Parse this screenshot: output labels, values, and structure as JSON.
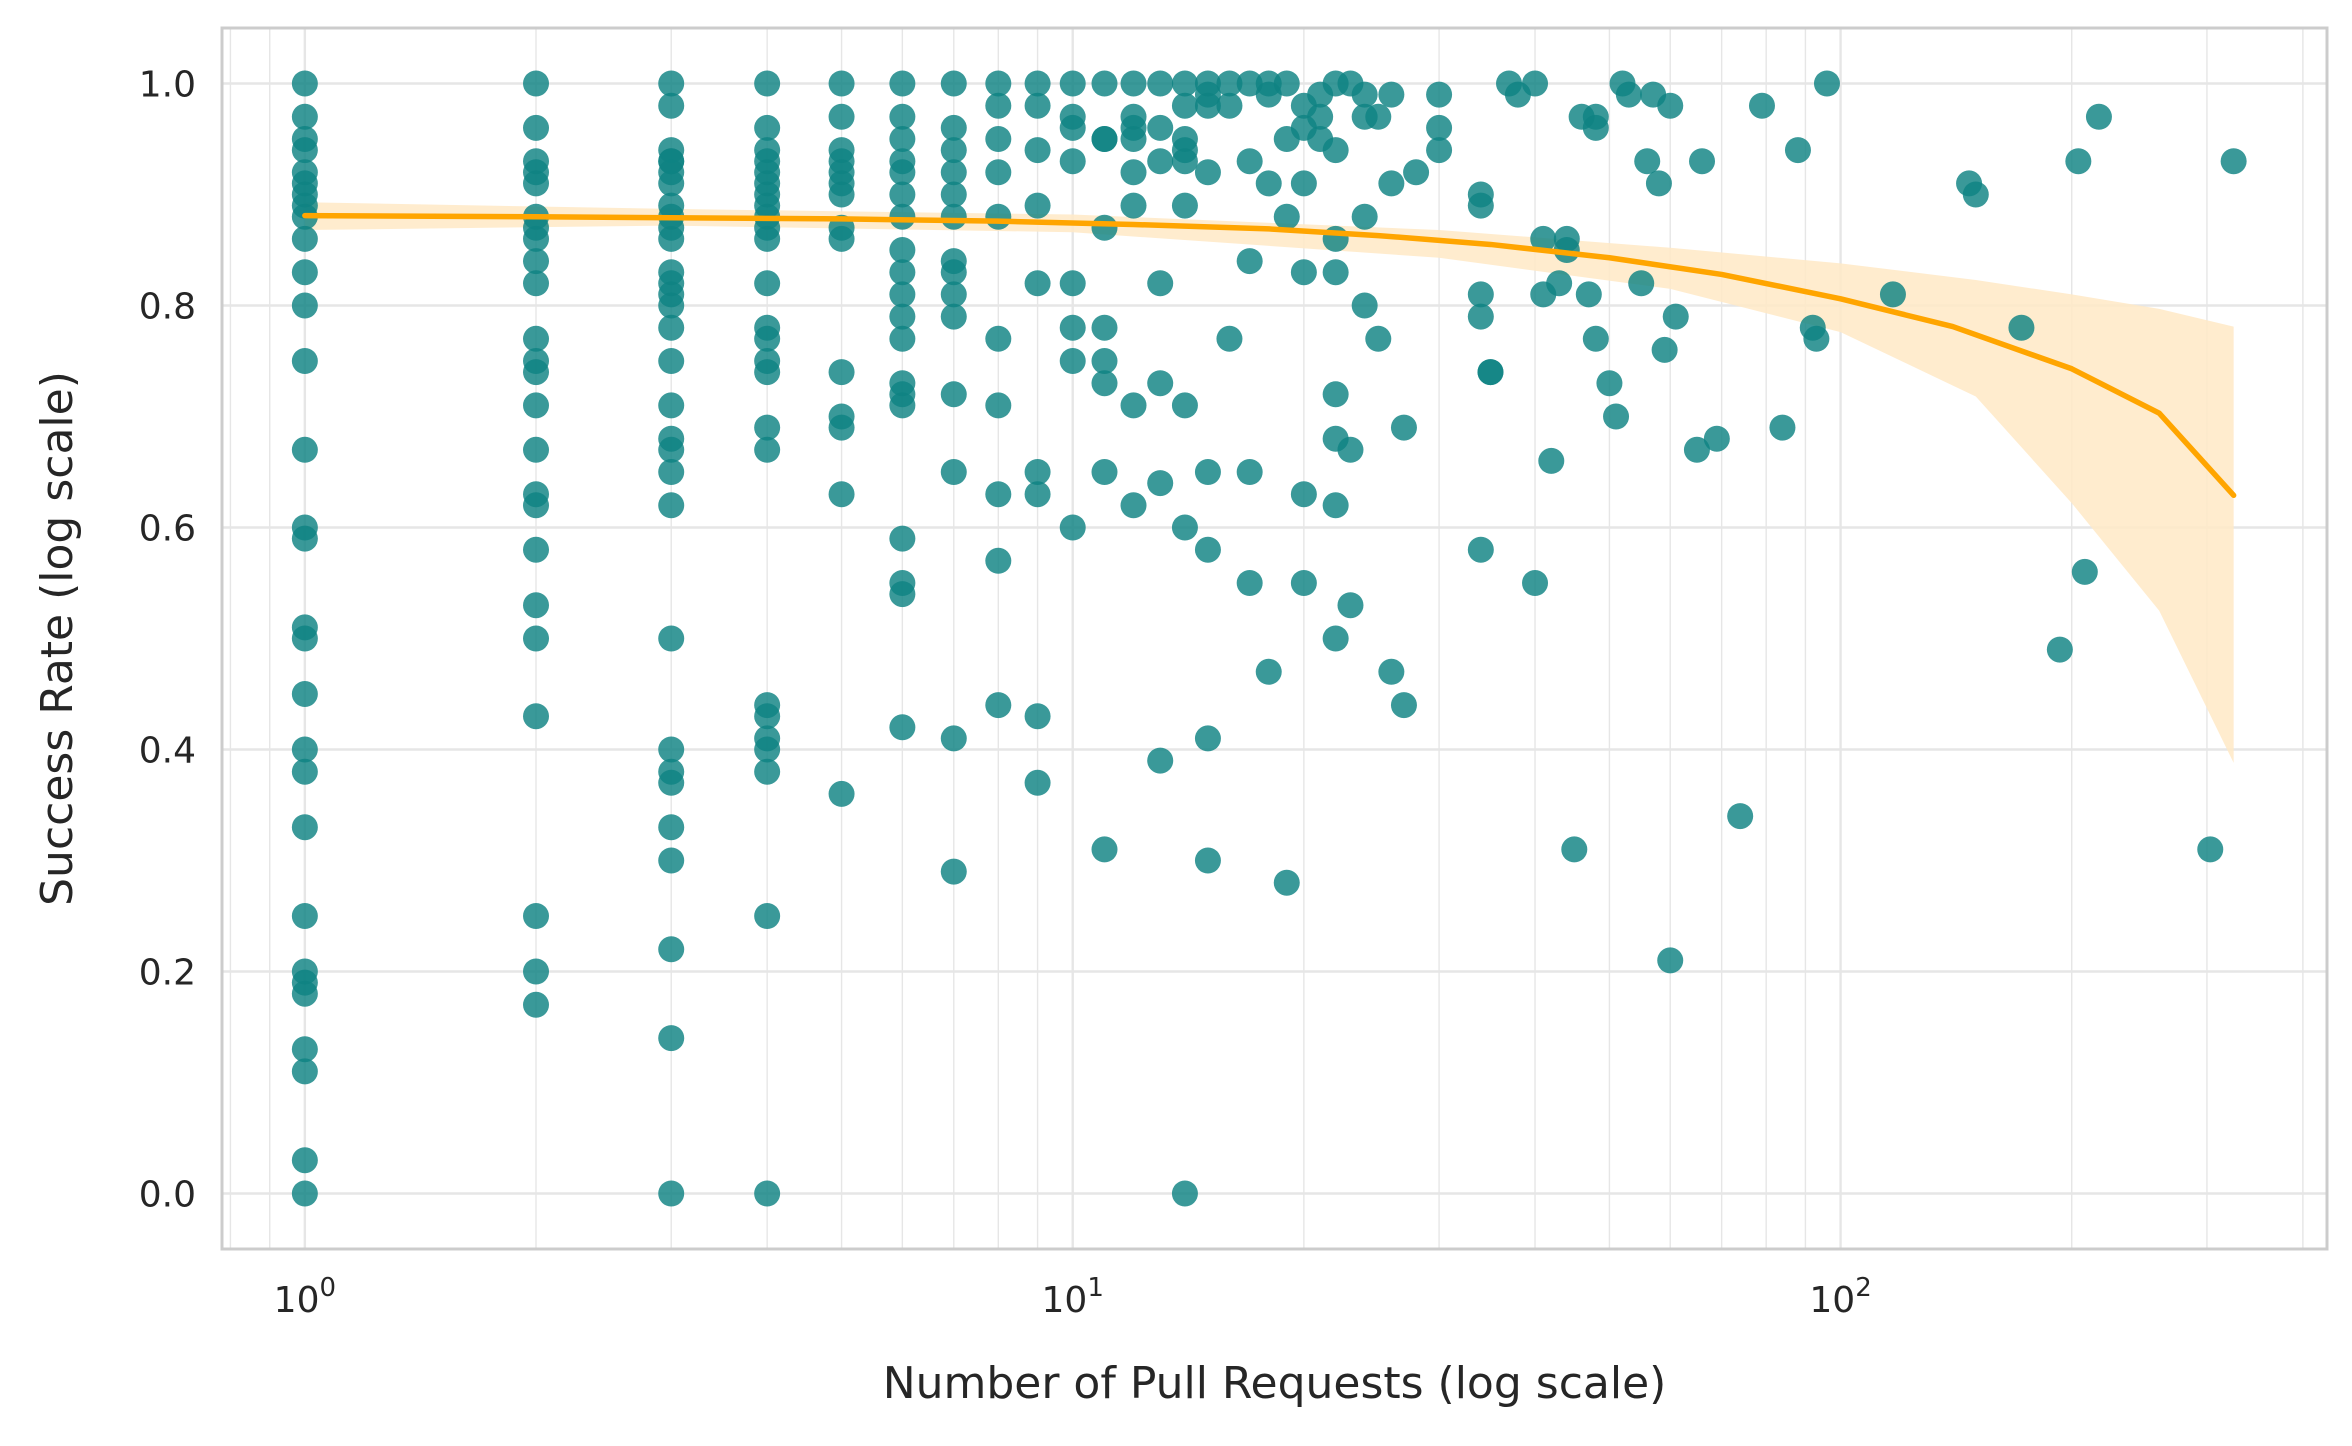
{
  "chart_data": {
    "type": "scatter",
    "title": "",
    "xlabel": "Number of Pull Requests (log scale)",
    "ylabel": "Success Rate (log scale)",
    "x_scale": "log",
    "xlim": [
      0.78,
      430
    ],
    "ylim": [
      -0.05,
      1.05
    ],
    "x_ticks": [
      {
        "value": 1,
        "base": "10",
        "exp": "0"
      },
      {
        "value": 10,
        "base": "10",
        "exp": "1"
      },
      {
        "value": 100,
        "base": "10",
        "exp": "2"
      }
    ],
    "y_ticks": [
      {
        "value": 0.0,
        "label": "0.0"
      },
      {
        "value": 0.2,
        "label": "0.2"
      },
      {
        "value": 0.4,
        "label": "0.4"
      },
      {
        "value": 0.6,
        "label": "0.6"
      },
      {
        "value": 0.8,
        "label": "0.8"
      },
      {
        "value": 1.0,
        "label": "1.0"
      }
    ],
    "grid": true,
    "legend": "none",
    "colors": {
      "points": "#0f8282",
      "fit_line": "#ffa500",
      "band": "#ffe9c6",
      "grid": "#e6e6e6",
      "spine": "#cccccc"
    },
    "series": [
      {
        "type": "scatter",
        "x": [
          1,
          1,
          1,
          1,
          1,
          1,
          1,
          1,
          1,
          1,
          1,
          1,
          1,
          1,
          1,
          1,
          1,
          1,
          1,
          1,
          1,
          1,
          1,
          1,
          1,
          1,
          1,
          1,
          1,
          1,
          2,
          2,
          2,
          2,
          2,
          2,
          2,
          2,
          2,
          2,
          2,
          2,
          2,
          2,
          2,
          2,
          2,
          2,
          2,
          2,
          2,
          2,
          2,
          2,
          3,
          3,
          3,
          3,
          3,
          3,
          3,
          3,
          3,
          3,
          3,
          3,
          3,
          3,
          3,
          3,
          3,
          3,
          3,
          3,
          3,
          3,
          3,
          3,
          3,
          3,
          3,
          3,
          3,
          3,
          3,
          4,
          4,
          4,
          4,
          4,
          4,
          4,
          4,
          4,
          4,
          4,
          4,
          4,
          4,
          4,
          4,
          4,
          4,
          4,
          4,
          4,
          4,
          4,
          4,
          4,
          5,
          5,
          5,
          5,
          5,
          5,
          5,
          5,
          5,
          5,
          5,
          5,
          5,
          5,
          6,
          6,
          6,
          6,
          6,
          6,
          6,
          6,
          6,
          6,
          6,
          6,
          6,
          6,
          6,
          6,
          6,
          6,
          6,
          7,
          7,
          7,
          7,
          7,
          7,
          7,
          7,
          7,
          7,
          7,
          7,
          7,
          7,
          8,
          8,
          8,
          8,
          8,
          8,
          8,
          8,
          8,
          8,
          9,
          9,
          9,
          9,
          9,
          9,
          9,
          9,
          9,
          10,
          10,
          10,
          10,
          10,
          10,
          10,
          10,
          11,
          11,
          11,
          11,
          11,
          11,
          11,
          11,
          11,
          12,
          12,
          12,
          12,
          12,
          12,
          12,
          12,
          13,
          13,
          13,
          13,
          13,
          13,
          13,
          14,
          14,
          14,
          14,
          14,
          14,
          14,
          14,
          14,
          15,
          15,
          15,
          15,
          15,
          15,
          15,
          15,
          16,
          16,
          16,
          17,
          17,
          17,
          17,
          17,
          18,
          18,
          18,
          18,
          19,
          19,
          19,
          19,
          20,
          20,
          20,
          20,
          20,
          20,
          21,
          21,
          21,
          22,
          22,
          22,
          22,
          22,
          22,
          22,
          22,
          23,
          23,
          23,
          24,
          24,
          24,
          24,
          25,
          25,
          26,
          26,
          26,
          27,
          27,
          28,
          30,
          30,
          30,
          34,
          34,
          34,
          34,
          34,
          35,
          35,
          37,
          38,
          40,
          40,
          41,
          41,
          42,
          43,
          44,
          44,
          45,
          46,
          47,
          48,
          48,
          48,
          50,
          51,
          52,
          53,
          55,
          56,
          57,
          58,
          59,
          60,
          60,
          61,
          65,
          66,
          69,
          74,
          79,
          84,
          88,
          92,
          93,
          96,
          117,
          147,
          150,
          172,
          193,
          204,
          208,
          217,
          303,
          325
        ],
        "y": [
          1.0,
          0.97,
          0.95,
          0.94,
          0.92,
          0.91,
          0.9,
          0.89,
          0.88,
          0.86,
          0.83,
          0.8,
          0.75,
          0.67,
          0.6,
          0.59,
          0.51,
          0.5,
          0.45,
          0.4,
          0.38,
          0.33,
          0.25,
          0.2,
          0.19,
          0.18,
          0.13,
          0.11,
          0.03,
          0.0,
          1.0,
          0.96,
          0.93,
          0.92,
          0.91,
          0.88,
          0.87,
          0.86,
          0.84,
          0.82,
          0.77,
          0.75,
          0.74,
          0.71,
          0.67,
          0.63,
          0.62,
          0.58,
          0.53,
          0.5,
          0.43,
          0.25,
          0.2,
          0.17,
          1.0,
          0.98,
          0.94,
          0.93,
          0.92,
          0.91,
          0.89,
          0.88,
          0.87,
          0.86,
          0.83,
          0.82,
          0.81,
          0.8,
          0.78,
          0.75,
          0.71,
          0.68,
          0.67,
          0.65,
          0.62,
          0.5,
          0.4,
          0.38,
          0.37,
          0.33,
          0.3,
          0.22,
          0.14,
          0.0,
          0.93,
          1.0,
          0.96,
          0.94,
          0.93,
          0.92,
          0.91,
          0.9,
          0.89,
          0.88,
          0.87,
          0.86,
          0.82,
          0.78,
          0.77,
          0.75,
          0.74,
          0.69,
          0.67,
          0.44,
          0.43,
          0.41,
          0.4,
          0.38,
          0.25,
          0.0,
          1.0,
          0.97,
          0.94,
          0.93,
          0.92,
          0.91,
          0.9,
          0.87,
          0.86,
          0.74,
          0.7,
          0.69,
          0.63,
          0.36,
          1.0,
          0.97,
          0.95,
          0.93,
          0.92,
          0.9,
          0.88,
          0.85,
          0.83,
          0.81,
          0.79,
          0.77,
          0.73,
          0.72,
          0.71,
          0.59,
          0.55,
          0.54,
          0.42,
          1.0,
          0.96,
          0.94,
          0.92,
          0.9,
          0.88,
          0.84,
          0.83,
          0.81,
          0.79,
          0.72,
          0.65,
          0.41,
          0.29,
          1.0,
          0.98,
          0.95,
          0.92,
          0.88,
          0.77,
          0.71,
          0.63,
          0.57,
          0.44,
          1.0,
          0.98,
          0.94,
          0.89,
          0.82,
          0.65,
          0.63,
          0.43,
          0.37,
          1.0,
          0.97,
          0.96,
          0.93,
          0.82,
          0.78,
          0.75,
          0.6,
          1.0,
          0.95,
          0.87,
          0.78,
          0.75,
          0.73,
          0.65,
          0.31,
          0.95,
          1.0,
          0.97,
          0.92,
          0.89,
          0.71,
          0.62,
          0.95,
          0.96,
          1.0,
          0.96,
          0.93,
          0.82,
          0.73,
          0.64,
          0.39,
          1.0,
          0.98,
          0.95,
          0.93,
          0.89,
          0.71,
          0.6,
          0.0,
          0.94,
          1.0,
          0.99,
          0.98,
          0.92,
          0.65,
          0.58,
          0.41,
          0.3,
          1.0,
          0.98,
          0.77,
          1.0,
          0.93,
          0.84,
          0.65,
          0.55,
          1.0,
          0.99,
          0.91,
          0.47,
          1.0,
          0.88,
          0.95,
          0.28,
          0.98,
          0.96,
          0.91,
          0.83,
          0.63,
          0.55,
          0.99,
          0.97,
          0.95,
          1.0,
          0.94,
          0.86,
          0.83,
          0.72,
          0.68,
          0.62,
          0.5,
          1.0,
          0.67,
          0.53,
          0.99,
          0.97,
          0.88,
          0.8,
          0.97,
          0.77,
          0.99,
          0.91,
          0.47,
          0.69,
          0.44,
          0.92,
          0.99,
          0.96,
          0.94,
          0.9,
          0.89,
          0.81,
          0.79,
          0.58,
          0.74,
          0.74,
          1.0,
          0.99,
          1.0,
          0.55,
          0.86,
          0.81,
          0.66,
          0.82,
          0.86,
          0.85,
          0.31,
          0.97,
          0.81,
          0.96,
          0.97,
          0.77,
          0.73,
          0.7,
          1.0,
          0.99,
          0.82,
          0.93,
          0.99,
          0.91,
          0.76,
          0.98,
          0.21,
          0.79,
          0.67,
          0.93,
          0.68,
          0.34,
          0.98,
          0.69,
          0.94,
          0.78,
          0.77,
          1.0,
          0.81,
          0.91,
          0.9,
          0.78,
          0.49,
          0.93,
          0.56,
          0.97,
          0.31,
          0.93
        ],
        "y_extra_note": ""
      },
      {
        "type": "line",
        "x": [
          1,
          2,
          3,
          5,
          8,
          12,
          18,
          25,
          35,
          50,
          70,
          100,
          140,
          200,
          260,
          325
        ],
        "y": [
          0.881,
          0.88,
          0.879,
          0.878,
          0.876,
          0.873,
          0.869,
          0.863,
          0.855,
          0.843,
          0.828,
          0.806,
          0.781,
          0.743,
          0.703,
          0.629
        ]
      }
    ],
    "ci_band": {
      "x": [
        1,
        3,
        10,
        30,
        60,
        100,
        150,
        200,
        260,
        325
      ],
      "lower": [
        0.868,
        0.872,
        0.866,
        0.843,
        0.815,
        0.776,
        0.718,
        0.622,
        0.525,
        0.388
      ],
      "upper": [
        0.893,
        0.887,
        0.882,
        0.868,
        0.852,
        0.838,
        0.823,
        0.81,
        0.797,
        0.781
      ]
    }
  }
}
